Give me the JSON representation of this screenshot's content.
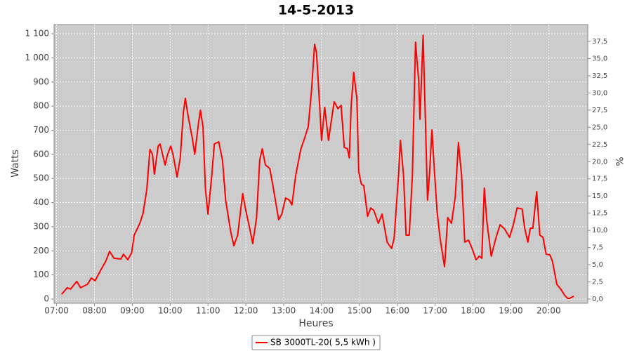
{
  "chart_data": {
    "type": "line",
    "title": "14-5-2013",
    "x_label": "Heures",
    "y_label": "Watts",
    "y2_label": "%",
    "x": [
      "07:08",
      "07:17",
      "07:22",
      "07:32",
      "07:38",
      "07:49",
      "07:55",
      "08:01",
      "08:11",
      "08:18",
      "08:24",
      "08:31",
      "08:42",
      "08:46",
      "08:53",
      "08:59",
      "09:03",
      "09:12",
      "09:17",
      "09:23",
      "09:28",
      "09:32",
      "09:35",
      "09:41",
      "09:44",
      "09:52",
      "09:56",
      "10:01",
      "10:05",
      "10:11",
      "10:16",
      "10:21",
      "10:24",
      "10:29",
      "10:35",
      "10:39",
      "10:45",
      "10:48",
      "10:52",
      "10:56",
      "11:00",
      "11:06",
      "11:10",
      "11:17",
      "11:23",
      "11:28",
      "11:36",
      "11:41",
      "11:47",
      "11:55",
      "12:00",
      "12:06",
      "12:11",
      "12:17",
      "12:22",
      "12:26",
      "12:31",
      "12:38",
      "12:44",
      "12:52",
      "12:57",
      "13:03",
      "13:09",
      "13:13",
      "13:19",
      "13:27",
      "13:33",
      "13:39",
      "13:44",
      "13:49",
      "13:52",
      "13:57",
      "14:00",
      "14:05",
      "14:11",
      "14:15",
      "14:20",
      "14:26",
      "14:31",
      "14:36",
      "14:41",
      "14:44",
      "14:47",
      "14:51",
      "14:56",
      "14:59",
      "15:03",
      "15:07",
      "15:13",
      "15:18",
      "15:23",
      "15:30",
      "15:36",
      "15:44",
      "15:51",
      "15:55",
      "16:02",
      "16:05",
      "16:10",
      "16:14",
      "16:19",
      "16:24",
      "16:29",
      "16:34",
      "16:36",
      "16:41",
      "16:44",
      "16:48",
      "16:51",
      "16:55",
      "16:58",
      "17:03",
      "17:08",
      "17:15",
      "17:20",
      "17:26",
      "17:32",
      "17:37",
      "17:42",
      "17:47",
      "17:53",
      "17:59",
      "18:05",
      "18:10",
      "18:14",
      "18:18",
      "18:22",
      "18:29",
      "18:37",
      "18:43",
      "18:50",
      "18:58",
      "19:04",
      "19:10",
      "19:18",
      "19:22",
      "19:27",
      "19:31",
      "19:35",
      "19:41",
      "19:46",
      "19:51",
      "19:56",
      "20:02",
      "20:06",
      "20:13",
      "20:20",
      "20:25",
      "20:30",
      "20:33",
      "20:40"
    ],
    "series": [
      {
        "name": "SB 3000TL-20( 5,5 kWh )",
        "color": "#ff0000",
        "values": [
          20,
          47,
          41,
          73,
          47,
          61,
          87,
          76,
          125,
          157,
          198,
          169,
          166,
          186,
          163,
          192,
          265,
          314,
          355,
          454,
          620,
          600,
          518,
          634,
          643,
          556,
          600,
          634,
          594,
          506,
          585,
          774,
          832,
          751,
          669,
          600,
          730,
          783,
          716,
          454,
          352,
          512,
          643,
          652,
          576,
          410,
          279,
          221,
          265,
          437,
          367,
          294,
          230,
          338,
          576,
          623,
          556,
          541,
          454,
          329,
          352,
          419,
          410,
          390,
          512,
          620,
          666,
          716,
          861,
          1056,
          1021,
          803,
          658,
          795,
          658,
          730,
          818,
          789,
          803,
          629,
          623,
          585,
          803,
          940,
          832,
          527,
          477,
          469,
          343,
          378,
          367,
          314,
          352,
          236,
          210,
          250,
          512,
          658,
          512,
          265,
          265,
          512,
          1065,
          905,
          745,
          1094,
          803,
          410,
          512,
          701,
          570,
          367,
          250,
          134,
          338,
          314,
          425,
          649,
          512,
          236,
          244,
          207,
          163,
          178,
          169,
          460,
          323,
          178,
          259,
          308,
          291,
          256,
          308,
          378,
          373,
          294,
          236,
          294,
          294,
          445,
          265,
          256,
          186,
          183,
          157,
          61,
          38,
          17,
          3,
          3,
          12
        ]
      }
    ],
    "xlim": [
      "06:56",
      "21:02"
    ],
    "xticks": [
      "07:00",
      "08:00",
      "09:00",
      "10:00",
      "11:00",
      "12:00",
      "13:00",
      "14:00",
      "15:00",
      "16:00",
      "17:00",
      "18:00",
      "19:00",
      "20:00"
    ],
    "ylim": [
      -17.5,
      1138
    ],
    "yticks": [
      0,
      100,
      200,
      300,
      400,
      500,
      600,
      700,
      800,
      900,
      {
        "value": 1000,
        "label": "1 000"
      },
      {
        "value": 1100,
        "label": "1 100"
      }
    ],
    "y2lim": [
      -0.61,
      39.95
    ],
    "y2ticks": [
      {
        "value": 0,
        "label": "0,0"
      },
      {
        "value": 2.5,
        "label": "2,5"
      },
      {
        "value": 5,
        "label": "5,0"
      },
      {
        "value": 7.5,
        "label": "7,5"
      },
      {
        "value": 10,
        "label": "10,0"
      },
      {
        "value": 12.5,
        "label": "12,5"
      },
      {
        "value": 15,
        "label": "15,0"
      },
      {
        "value": 17.5,
        "label": "17,5"
      },
      {
        "value": 20,
        "label": "20,0"
      },
      {
        "value": 22.5,
        "label": "22,5"
      },
      {
        "value": 25,
        "label": "25,0"
      },
      {
        "value": 27.5,
        "label": "27,5"
      },
      {
        "value": 30,
        "label": "30,0"
      },
      {
        "value": 32.5,
        "label": "32,5"
      },
      {
        "value": 35,
        "label": "35,0"
      },
      {
        "value": 37.5,
        "label": "37,5"
      }
    ],
    "grid": true,
    "plot_background": "#cccccc",
    "legend_position": "bottom"
  }
}
